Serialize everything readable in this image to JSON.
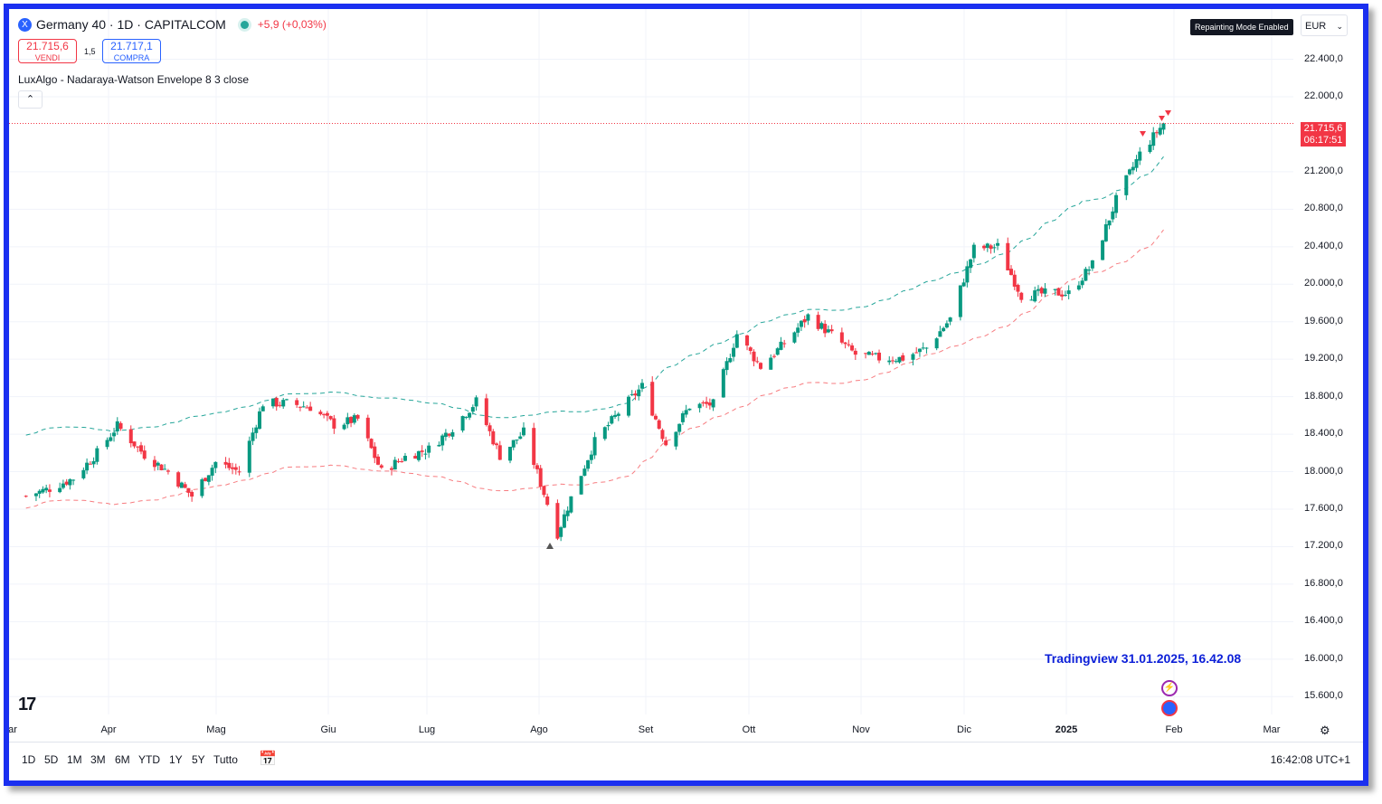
{
  "header": {
    "symbol_icon": "X",
    "title": "Germany 40 · 1D · CAPITALCOM",
    "market_status_icon": "market-open-dot-icon",
    "change": "+5,9 (+0,03%)"
  },
  "quote": {
    "sell_price": "21.715,6",
    "sell_label": "VENDI",
    "spread": "1,5",
    "buy_price": "21.717,1",
    "buy_label": "COMPRA"
  },
  "indicator": {
    "label": "LuxAlgo - Nadaraya-Watson Envelope 8 3 close",
    "collapse_icon": "chevron-up-icon"
  },
  "badge": "Repainting Mode Enabled",
  "currency": "EUR",
  "price_label": {
    "price": "21.715,6",
    "countdown": "06:17:51"
  },
  "watermark": "Tradingview 31.01.2025, 16.42.08",
  "timeframes": [
    "1D",
    "5D",
    "1M",
    "3M",
    "6M",
    "YTD",
    "1Y",
    "5Y",
    "Tutto"
  ],
  "clock": "16:42:08 UTC+1",
  "colors": {
    "up": "#089981",
    "down": "#f23645",
    "upper_band": "#26a69a",
    "lower_band": "#f77c80"
  },
  "chart_data": {
    "type": "candlestick",
    "x_tick_labels": [
      "ar",
      "Apr",
      "Mag",
      "Giu",
      "Lug",
      "Ago",
      "Set",
      "Ott",
      "Nov",
      "Dic",
      "2025",
      "Feb",
      "Mar"
    ],
    "y_tick_labels": [
      "22.400,0",
      "22.000,0",
      "21.200,0",
      "20.800,0",
      "20.400,0",
      "20.000,0",
      "19.600,0",
      "19.200,0",
      "18.800,0",
      "18.400,0",
      "18.000,0",
      "17.600,0",
      "17.200,0",
      "16.800,0",
      "16.400,0",
      "16.000,0",
      "15.600,0"
    ],
    "y_ticks": [
      22400,
      22000,
      21200,
      20800,
      20400,
      20000,
      19600,
      19200,
      18800,
      18400,
      18000,
      17600,
      17200,
      16800,
      16400,
      16000,
      15600
    ],
    "ylim": [
      15500,
      22800
    ],
    "last_price": 21715.6,
    "close_series": [
      {
        "date": "2024-03-01",
        "close": 17740
      },
      {
        "date": "2024-03-08",
        "close": 17820
      },
      {
        "date": "2024-03-15",
        "close": 17930
      },
      {
        "date": "2024-03-22",
        "close": 18200
      },
      {
        "date": "2024-03-28",
        "close": 18490
      },
      {
        "date": "2024-04-05",
        "close": 18180
      },
      {
        "date": "2024-04-12",
        "close": 18000
      },
      {
        "date": "2024-04-19",
        "close": 17740
      },
      {
        "date": "2024-04-26",
        "close": 18100
      },
      {
        "date": "2024-05-03",
        "close": 18000
      },
      {
        "date": "2024-05-10",
        "close": 18730
      },
      {
        "date": "2024-05-17",
        "close": 18730
      },
      {
        "date": "2024-05-24",
        "close": 18690
      },
      {
        "date": "2024-05-31",
        "close": 18500
      },
      {
        "date": "2024-06-07",
        "close": 18560
      },
      {
        "date": "2024-06-14",
        "close": 18000
      },
      {
        "date": "2024-06-21",
        "close": 18160
      },
      {
        "date": "2024-06-28",
        "close": 18240
      },
      {
        "date": "2024-07-05",
        "close": 18470
      },
      {
        "date": "2024-07-12",
        "close": 18750
      },
      {
        "date": "2024-07-19",
        "close": 18170
      },
      {
        "date": "2024-07-26",
        "close": 18420
      },
      {
        "date": "2024-08-02",
        "close": 17660
      },
      {
        "date": "2024-08-05",
        "close": 17340
      },
      {
        "date": "2024-08-09",
        "close": 17720
      },
      {
        "date": "2024-08-16",
        "close": 18320
      },
      {
        "date": "2024-08-23",
        "close": 18630
      },
      {
        "date": "2024-08-30",
        "close": 18910
      },
      {
        "date": "2024-09-06",
        "close": 18300
      },
      {
        "date": "2024-09-13",
        "close": 18700
      },
      {
        "date": "2024-09-20",
        "close": 18720
      },
      {
        "date": "2024-09-27",
        "close": 19470
      },
      {
        "date": "2024-10-04",
        "close": 19120
      },
      {
        "date": "2024-10-11",
        "close": 19370
      },
      {
        "date": "2024-10-18",
        "close": 19660
      },
      {
        "date": "2024-10-25",
        "close": 19460
      },
      {
        "date": "2024-11-01",
        "close": 19250
      },
      {
        "date": "2024-11-08",
        "close": 19210
      },
      {
        "date": "2024-11-15",
        "close": 19210
      },
      {
        "date": "2024-11-22",
        "close": 19320
      },
      {
        "date": "2024-11-29",
        "close": 19630
      },
      {
        "date": "2024-12-06",
        "close": 20380
      },
      {
        "date": "2024-12-13",
        "close": 20400
      },
      {
        "date": "2024-12-20",
        "close": 19880
      },
      {
        "date": "2024-12-30",
        "close": 19910
      },
      {
        "date": "2025-01-03",
        "close": 19900
      },
      {
        "date": "2025-01-10",
        "close": 20210
      },
      {
        "date": "2025-01-17",
        "close": 20900
      },
      {
        "date": "2025-01-24",
        "close": 21390
      },
      {
        "date": "2025-01-31",
        "close": 21715
      }
    ]
  }
}
